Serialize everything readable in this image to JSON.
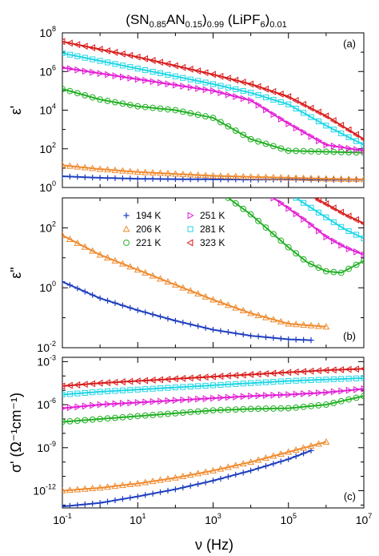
{
  "chart_data": {
    "type": "scatter",
    "title": {
      "parts": [
        {
          "t": "(SN",
          "sub": false
        },
        {
          "t": "0.85",
          "sub": true
        },
        {
          "t": "AN",
          "sub": false
        },
        {
          "t": "0.15",
          "sub": true
        },
        {
          "t": ")",
          "sub": false
        },
        {
          "t": "0.99",
          "sub": true
        },
        {
          "t": " (LiPF",
          "sub": false
        },
        {
          "t": "6",
          "sub": true
        },
        {
          "t": ")",
          "sub": false
        },
        {
          "t": "0.01",
          "sub": true
        }
      ]
    },
    "xlabel": "ν (Hz)",
    "x_scale": "log",
    "xlim_exp": [
      -1,
      7
    ],
    "x_tick_exponents": [
      -1,
      1,
      3,
      5,
      7
    ],
    "colors": {
      "194 K": "#1f3fbf",
      "206 K": "#ef8a2e",
      "221 K": "#22b024",
      "251 K": "#e21fd5",
      "281 K": "#1fd6e6",
      "323 K": "#d91c1c"
    },
    "legend": {
      "entries": [
        {
          "label": "194 K",
          "marker": "plus"
        },
        {
          "label": "206 K",
          "marker": "triangle-up"
        },
        {
          "label": "221 K",
          "marker": "circle"
        },
        {
          "label": "251 K",
          "marker": "triangle-right"
        },
        {
          "label": "281 K",
          "marker": "square"
        },
        {
          "label": "323 K",
          "marker": "triangle-left"
        }
      ],
      "panel": "b",
      "placement": "top-left"
    },
    "panels": [
      {
        "id": "a",
        "letter": "(a)",
        "letter_placement": "top-right",
        "ylabel": "ε'",
        "y_scale": "log",
        "ylim_exp": [
          0,
          8
        ],
        "y_tick_exponents": [
          0,
          2,
          4,
          6,
          8
        ],
        "series": [
          {
            "name": "194 K",
            "x_exp": [
              -1,
              0,
              1,
              2,
              3,
              4,
              5,
              6,
              7
            ],
            "y_exp": [
              0.58,
              0.5,
              0.45,
              0.43,
              0.42,
              0.41,
              0.41,
              0.4,
              0.4
            ]
          },
          {
            "name": "206 K",
            "x_exp": [
              -1,
              0,
              1,
              2,
              3,
              4,
              5,
              6,
              7
            ],
            "y_exp": [
              1.15,
              0.95,
              0.8,
              0.7,
              0.6,
              0.55,
              0.5,
              0.45,
              0.42
            ]
          },
          {
            "name": "221 K",
            "x_exp": [
              -1,
              0,
              1,
              2,
              3,
              4,
              5,
              6,
              7
            ],
            "y_exp": [
              5.1,
              4.55,
              4.2,
              4.0,
              3.6,
              2.5,
              1.9,
              1.85,
              1.8
            ]
          },
          {
            "name": "251 K",
            "x_exp": [
              -1,
              0,
              1,
              2,
              3,
              4,
              5,
              6,
              7
            ],
            "y_exp": [
              6.2,
              5.9,
              5.6,
              5.3,
              5.0,
              4.5,
              3.3,
              2.2,
              1.9
            ]
          },
          {
            "name": "281 K",
            "x_exp": [
              -1,
              0,
              1,
              2,
              3,
              4,
              5,
              6,
              7
            ],
            "y_exp": [
              6.95,
              6.55,
              6.15,
              5.75,
              5.35,
              4.9,
              4.3,
              3.2,
              2.2
            ]
          },
          {
            "name": "323 K",
            "x_exp": [
              -1,
              0,
              1,
              2,
              3,
              4,
              5,
              6,
              7
            ],
            "y_exp": [
              7.55,
              7.15,
              6.75,
              6.3,
              5.85,
              5.35,
              4.7,
              3.7,
              2.5
            ]
          }
        ]
      },
      {
        "id": "b",
        "letter": "(b)",
        "letter_placement": "bottom-right",
        "ylabel": "ε\"",
        "y_scale": "log",
        "ylim_exp": [
          -2,
          3
        ],
        "y_tick_exponents": [
          -2,
          0,
          2
        ],
        "series": [
          {
            "name": "194 K",
            "x_exp": [
              -1,
              0,
              1,
              2,
              3,
              4,
              5,
              5.6
            ],
            "y_exp": [
              0.2,
              -0.35,
              -0.75,
              -1.1,
              -1.4,
              -1.6,
              -1.72,
              -1.75
            ]
          },
          {
            "name": "206 K",
            "x_exp": [
              -1,
              0,
              1,
              2,
              3,
              4,
              5,
              6.0
            ],
            "y_exp": [
              1.75,
              1.1,
              0.6,
              0.1,
              -0.4,
              -0.85,
              -1.2,
              -1.3
            ]
          },
          {
            "name": "221 K",
            "x_exp": [
              3.4,
              4.0,
              4.5,
              5.0,
              5.5,
              6.0,
              6.4,
              7.0
            ],
            "y_exp": [
              3.0,
              2.45,
              1.9,
              1.35,
              0.85,
              0.55,
              0.5,
              0.9
            ]
          },
          {
            "name": "251 K",
            "x_exp": [
              4.6,
              5.0,
              5.5,
              6.0,
              6.5,
              7.0
            ],
            "y_exp": [
              3.0,
              2.65,
              2.2,
              1.7,
              1.35,
              1.1
            ]
          },
          {
            "name": "281 K",
            "x_exp": [
              5.2,
              5.5,
              6.0,
              6.5,
              7.0
            ],
            "y_exp": [
              3.0,
              2.75,
              2.35,
              1.95,
              1.65
            ]
          },
          {
            "name": "323 K",
            "x_exp": [
              5.7,
              6.0,
              6.5,
              7.0
            ],
            "y_exp": [
              3.0,
              2.8,
              2.45,
              2.15
            ]
          }
        ]
      },
      {
        "id": "c",
        "letter": "(c)",
        "letter_placement": "bottom-right",
        "ylabel": "σ' (Ω⁻¹cm⁻¹)",
        "y_scale": "log",
        "ylim_exp": [
          -13.2,
          -2.7
        ],
        "y_tick_exponents": [
          -12,
          -9,
          -6,
          -3
        ],
        "series": [
          {
            "name": "194 K",
            "x_exp": [
              -1,
              0,
              1,
              2,
              3,
              4,
              5,
              5.6
            ],
            "y_exp": [
              -13.1,
              -12.85,
              -12.4,
              -11.9,
              -11.3,
              -10.6,
              -9.8,
              -9.2
            ]
          },
          {
            "name": "206 K",
            "x_exp": [
              -1,
              0,
              1,
              2,
              3,
              4,
              5,
              6.0
            ],
            "y_exp": [
              -12.0,
              -11.8,
              -11.5,
              -11.1,
              -10.6,
              -10.0,
              -9.3,
              -8.6
            ]
          },
          {
            "name": "221 K",
            "x_exp": [
              -1,
              0,
              1,
              2,
              3,
              4,
              5,
              6,
              7
            ],
            "y_exp": [
              -7.2,
              -7.0,
              -6.8,
              -6.6,
              -6.4,
              -6.3,
              -6.25,
              -6.0,
              -5.4
            ]
          },
          {
            "name": "251 K",
            "x_exp": [
              -1,
              0,
              1,
              2,
              3,
              4,
              5,
              6,
              7
            ],
            "y_exp": [
              -6.25,
              -6.0,
              -5.85,
              -5.7,
              -5.55,
              -5.4,
              -5.3,
              -5.15,
              -4.9
            ]
          },
          {
            "name": "281 K",
            "x_exp": [
              -1,
              0,
              1,
              2,
              3,
              4,
              5,
              6,
              7
            ],
            "y_exp": [
              -5.3,
              -5.1,
              -4.95,
              -4.8,
              -4.65,
              -4.5,
              -4.35,
              -4.25,
              -4.15
            ]
          },
          {
            "name": "323 K",
            "x_exp": [
              -1,
              0,
              1,
              2,
              3,
              4,
              5,
              6,
              7
            ],
            "y_exp": [
              -4.7,
              -4.5,
              -4.35,
              -4.2,
              -4.05,
              -3.9,
              -3.75,
              -3.6,
              -3.5
            ]
          }
        ]
      }
    ]
  }
}
